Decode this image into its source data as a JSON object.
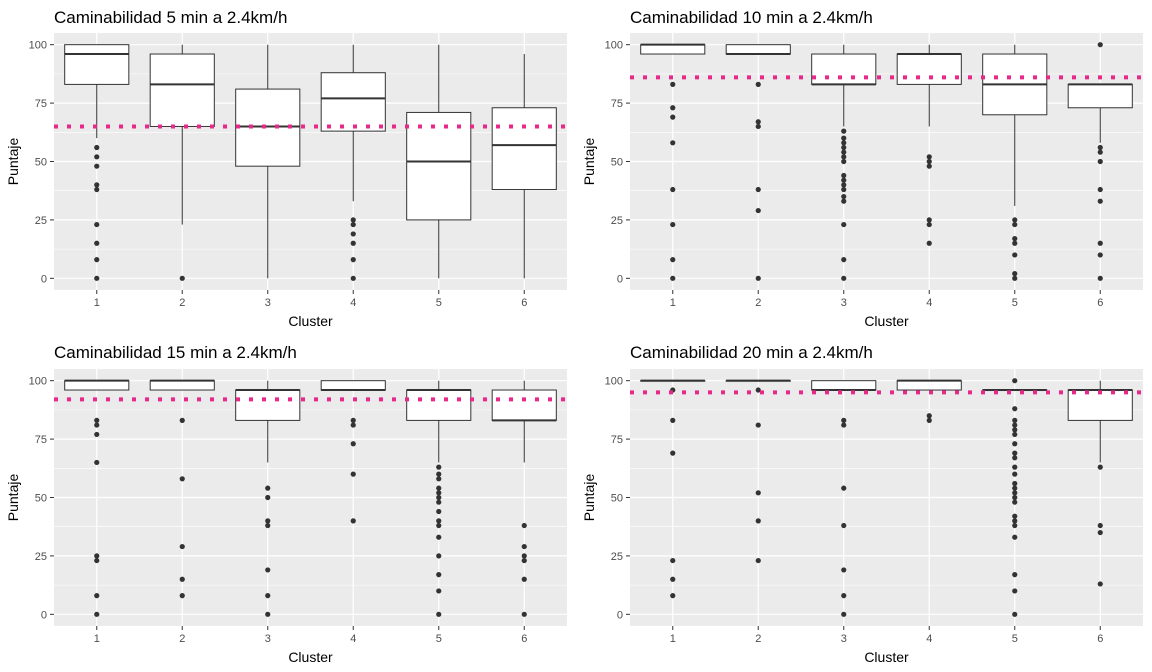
{
  "chart_data": [
    {
      "type": "boxplot",
      "title": "Caminabilidad  5 min a 2.4km/h",
      "xlabel": "Cluster",
      "ylabel": "Puntaje",
      "categories": [
        "1",
        "2",
        "3",
        "4",
        "5",
        "6"
      ],
      "y_ticks": [
        "0",
        "25",
        "50",
        "75",
        "100"
      ],
      "ylim": [
        -5,
        105
      ],
      "grid": true,
      "reference_line": {
        "value": 65,
        "style": "dotted",
        "color": "#e7298a"
      },
      "boxes": [
        {
          "category": "1",
          "min": 60,
          "q1": 83,
          "median": 96,
          "q3": 100,
          "max": 100,
          "outliers": [
            56,
            52,
            48,
            40,
            38,
            23,
            15,
            8,
            0
          ]
        },
        {
          "category": "2",
          "min": 23,
          "q1": 65,
          "median": 83,
          "q3": 96,
          "max": 100,
          "outliers": [
            0
          ]
        },
        {
          "category": "3",
          "min": 0,
          "q1": 48,
          "median": 65,
          "q3": 81,
          "max": 100,
          "outliers": []
        },
        {
          "category": "4",
          "min": 33,
          "q1": 63,
          "median": 77,
          "q3": 88,
          "max": 100,
          "outliers": [
            25,
            23,
            19,
            15,
            8,
            0
          ]
        },
        {
          "category": "5",
          "min": 0,
          "q1": 25,
          "median": 50,
          "q3": 71,
          "max": 100,
          "outliers": []
        },
        {
          "category": "6",
          "min": 0,
          "q1": 38,
          "median": 57,
          "q3": 73,
          "max": 96,
          "outliers": []
        }
      ]
    },
    {
      "type": "boxplot",
      "title": "Caminabilidad 10 min a 2.4km/h",
      "xlabel": "Cluster",
      "ylabel": "Puntaje",
      "categories": [
        "1",
        "2",
        "3",
        "4",
        "5",
        "6"
      ],
      "y_ticks": [
        "0",
        "25",
        "50",
        "75",
        "100"
      ],
      "ylim": [
        -5,
        105
      ],
      "grid": true,
      "reference_line": {
        "value": 86,
        "style": "dotted",
        "color": "#e7298a"
      },
      "boxes": [
        {
          "category": "1",
          "min": 96,
          "q1": 96,
          "median": 100,
          "q3": 100,
          "max": 100,
          "outliers": [
            83,
            73,
            69,
            58,
            38,
            23,
            8,
            0
          ]
        },
        {
          "category": "2",
          "min": 96,
          "q1": 96,
          "median": 96,
          "q3": 100,
          "max": 100,
          "outliers": [
            83,
            67,
            65,
            38,
            29,
            0
          ]
        },
        {
          "category": "3",
          "min": 65,
          "q1": 83,
          "median": 83,
          "q3": 96,
          "max": 100,
          "outliers": [
            63,
            60,
            58,
            56,
            54,
            52,
            50,
            44,
            42,
            40,
            38,
            35,
            33,
            23,
            8,
            0
          ]
        },
        {
          "category": "4",
          "min": 65,
          "q1": 83,
          "median": 96,
          "q3": 96,
          "max": 100,
          "outliers": [
            52,
            50,
            48,
            25,
            23,
            15
          ]
        },
        {
          "category": "5",
          "min": 31,
          "q1": 70,
          "median": 83,
          "q3": 96,
          "max": 100,
          "outliers": [
            25,
            23,
            17,
            15,
            10,
            2,
            0
          ]
        },
        {
          "category": "6",
          "min": 58,
          "q1": 73,
          "median": 83,
          "q3": 83,
          "max": 83,
          "outliers": [
            100,
            56,
            54,
            50,
            38,
            33,
            15,
            10,
            0
          ]
        }
      ]
    },
    {
      "type": "boxplot",
      "title": "Caminabilidad 15 min a 2.4km/h",
      "xlabel": "Cluster",
      "ylabel": "Puntaje",
      "categories": [
        "1",
        "2",
        "3",
        "4",
        "5",
        "6"
      ],
      "y_ticks": [
        "0",
        "25",
        "50",
        "75",
        "100"
      ],
      "ylim": [
        -5,
        105
      ],
      "grid": true,
      "reference_line": {
        "value": 92,
        "style": "dotted",
        "color": "#e7298a"
      },
      "boxes": [
        {
          "category": "1",
          "min": 96,
          "q1": 96,
          "median": 100,
          "q3": 100,
          "max": 100,
          "outliers": [
            83,
            81,
            77,
            65,
            25,
            23,
            8,
            0
          ]
        },
        {
          "category": "2",
          "min": 96,
          "q1": 96,
          "median": 100,
          "q3": 100,
          "max": 100,
          "outliers": [
            83,
            58,
            29,
            15,
            8
          ]
        },
        {
          "category": "3",
          "min": 65,
          "q1": 83,
          "median": 96,
          "q3": 96,
          "max": 100,
          "outliers": [
            54,
            50,
            40,
            38,
            19,
            8,
            0
          ]
        },
        {
          "category": "4",
          "min": 96,
          "q1": 96,
          "median": 96,
          "q3": 100,
          "max": 100,
          "outliers": [
            83,
            81,
            73,
            60,
            40
          ]
        },
        {
          "category": "5",
          "min": 65,
          "q1": 83,
          "median": 96,
          "q3": 96,
          "max": 100,
          "outliers": [
            63,
            60,
            58,
            54,
            52,
            50,
            48,
            44,
            40,
            38,
            33,
            25,
            17,
            10,
            0
          ]
        },
        {
          "category": "6",
          "min": 65,
          "q1": 83,
          "median": 83,
          "q3": 96,
          "max": 100,
          "outliers": [
            38,
            29,
            25,
            23,
            15,
            0
          ]
        }
      ]
    },
    {
      "type": "boxplot",
      "title": "Caminabilidad 20 min a 2.4km/h",
      "xlabel": "Cluster",
      "ylabel": "Puntaje",
      "categories": [
        "1",
        "2",
        "3",
        "4",
        "5",
        "6"
      ],
      "y_ticks": [
        "0",
        "25",
        "50",
        "75",
        "100"
      ],
      "ylim": [
        -5,
        105
      ],
      "grid": true,
      "reference_line": {
        "value": 95,
        "style": "dotted",
        "color": "#e7298a"
      },
      "boxes": [
        {
          "category": "1",
          "min": 100,
          "q1": 100,
          "median": 100,
          "q3": 100,
          "max": 100,
          "outliers": [
            96,
            83,
            69,
            23,
            15,
            8
          ]
        },
        {
          "category": "2",
          "min": 100,
          "q1": 100,
          "median": 100,
          "q3": 100,
          "max": 100,
          "outliers": [
            96,
            81,
            52,
            40,
            23
          ]
        },
        {
          "category": "3",
          "min": 96,
          "q1": 96,
          "median": 96,
          "q3": 100,
          "max": 100,
          "outliers": [
            83,
            81,
            54,
            38,
            19,
            8,
            0
          ]
        },
        {
          "category": "4",
          "min": 96,
          "q1": 96,
          "median": 100,
          "q3": 100,
          "max": 100,
          "outliers": [
            85,
            83
          ]
        },
        {
          "category": "5",
          "min": 96,
          "q1": 96,
          "median": 96,
          "q3": 96,
          "max": 96,
          "outliers": [
            100,
            88,
            83,
            81,
            79,
            77,
            73,
            69,
            67,
            63,
            60,
            56,
            54,
            52,
            50,
            48,
            42,
            40,
            38,
            33,
            17,
            10,
            0
          ]
        },
        {
          "category": "6",
          "min": 65,
          "q1": 83,
          "median": 96,
          "q3": 96,
          "max": 100,
          "outliers": [
            63,
            38,
            35,
            13
          ]
        }
      ]
    }
  ]
}
